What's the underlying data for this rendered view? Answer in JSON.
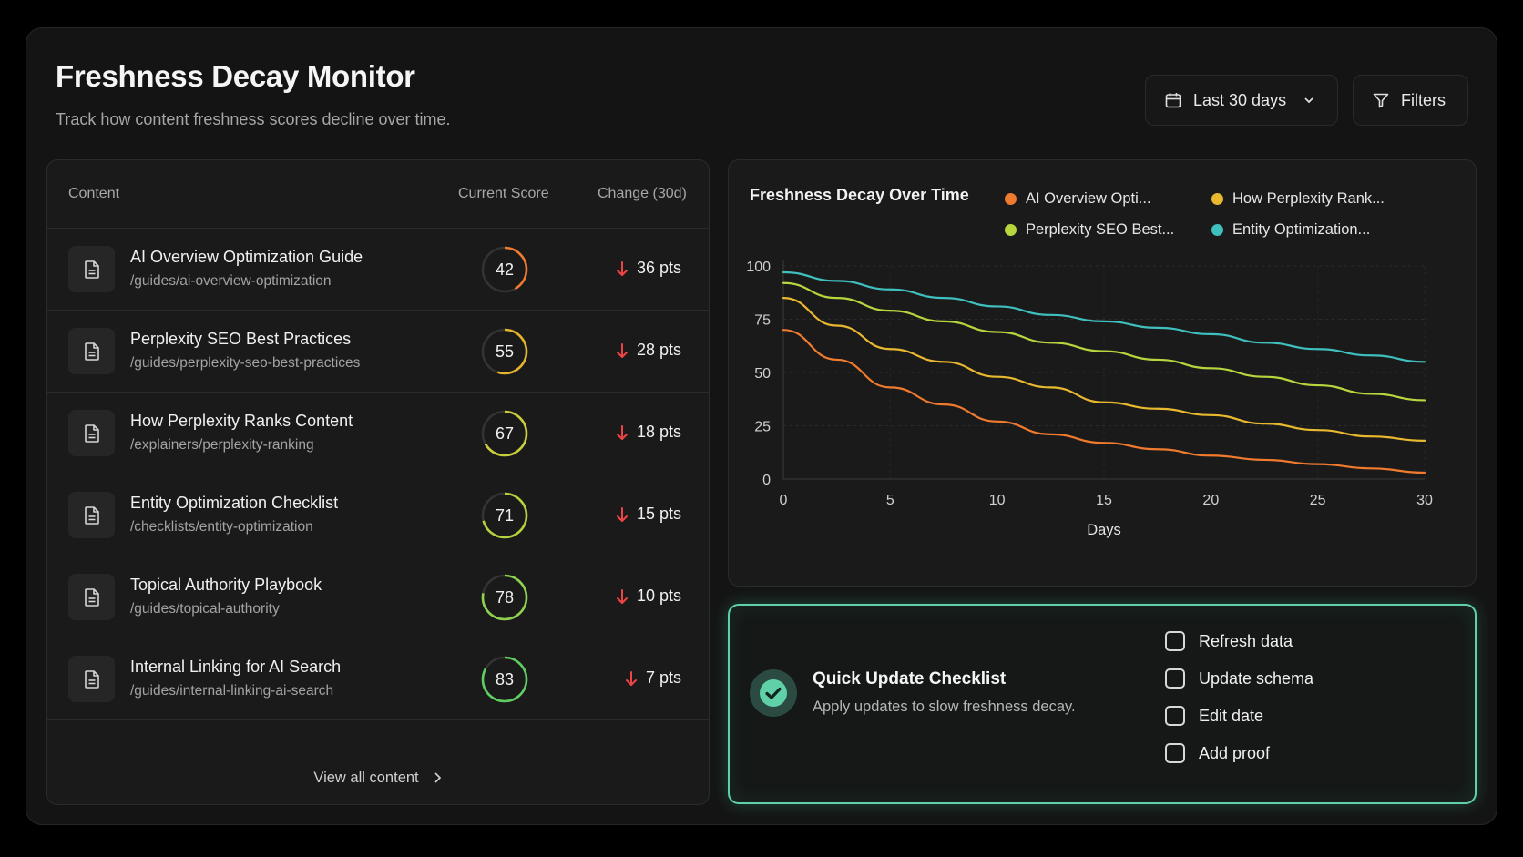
{
  "header": {
    "title": "Freshness Decay Monitor",
    "subtitle": "Track how content freshness scores decline over time.",
    "date_range": "Last 30 days",
    "filters": "Filters"
  },
  "table": {
    "columns": {
      "content": "Content",
      "score": "Current Score",
      "change": "Change (30d)"
    },
    "rows": [
      {
        "title": "AI Overview Optimization Guide",
        "path": "/guides/ai-overview-optimization",
        "score": "42",
        "score_value": 42,
        "change": "36 pts",
        "color": "#f07a2e"
      },
      {
        "title": "Perplexity SEO Best Practices",
        "path": "/guides/perplexity-seo-best-practices",
        "score": "55",
        "score_value": 55,
        "change": "28 pts",
        "color": "#e6b32b"
      },
      {
        "title": "How Perplexity Ranks Content",
        "path": "/explainers/perplexity-ranking",
        "score": "67",
        "score_value": 67,
        "change": "18 pts",
        "color": "#c9cf3a"
      },
      {
        "title": "Entity Optimization Checklist",
        "path": "/checklists/entity-optimization",
        "score": "71",
        "score_value": 71,
        "change": "15 pts",
        "color": "#b4d23c"
      },
      {
        "title": "Topical Authority Playbook",
        "path": "/guides/topical-authority",
        "score": "78",
        "score_value": 78,
        "change": "10 pts",
        "color": "#8fd14f"
      },
      {
        "title": "Internal Linking for AI Search",
        "path": "/guides/internal-linking-ai-search",
        "score": "83",
        "score_value": 83,
        "change": "7 pts",
        "color": "#5fce62"
      }
    ],
    "view_all": "View all content"
  },
  "chart_data": {
    "type": "line",
    "title": "Freshness Decay Over Time",
    "xlabel": "Days",
    "ylabel": "",
    "xlim": [
      0,
      30
    ],
    "ylim": [
      0,
      100
    ],
    "x_ticks": [
      0,
      5,
      10,
      15,
      20,
      25,
      30
    ],
    "y_ticks": [
      0,
      25,
      50,
      75,
      100
    ],
    "grid": true,
    "legend_position": "top-right",
    "x": [
      0,
      2.5,
      5,
      7.5,
      10,
      12.5,
      15,
      17.5,
      20,
      22.5,
      25,
      27.5,
      30
    ],
    "series": [
      {
        "name": "Entity Optimization...",
        "color": "#3fbfbd",
        "values": [
          97,
          93,
          89,
          85,
          81,
          77,
          74,
          71,
          68,
          64,
          61,
          58,
          55
        ]
      },
      {
        "name": "Perplexity SEO Best...",
        "color": "#b7d63e",
        "values": [
          92,
          85,
          79,
          74,
          69,
          64,
          60,
          56,
          52,
          48,
          44,
          40,
          37
        ]
      },
      {
        "name": "How Perplexity Rank...",
        "color": "#e8b82e",
        "values": [
          85,
          72,
          61,
          55,
          48,
          43,
          36,
          33,
          30,
          26,
          23,
          20,
          18
        ]
      },
      {
        "name": "AI Overview Opti...",
        "color": "#f07a2e",
        "values": [
          70,
          56,
          43,
          35,
          27,
          21,
          17,
          14,
          11,
          9,
          7,
          5,
          3
        ]
      }
    ],
    "legend": [
      {
        "name": "AI Overview Opti...",
        "color": "#f07a2e"
      },
      {
        "name": "How Perplexity Rank...",
        "color": "#e8b82e"
      },
      {
        "name": "Perplexity SEO Best...",
        "color": "#b7d63e"
      },
      {
        "name": "Entity Optimization...",
        "color": "#3fbfbd"
      }
    ]
  },
  "checklist": {
    "title": "Quick Update Checklist",
    "subtitle": "Apply updates to slow freshness decay.",
    "items": [
      "Refresh data",
      "Update schema",
      "Edit date",
      "Add proof"
    ]
  },
  "colors": {
    "accent": "#5fd0a8",
    "decline": "#ef4444"
  }
}
